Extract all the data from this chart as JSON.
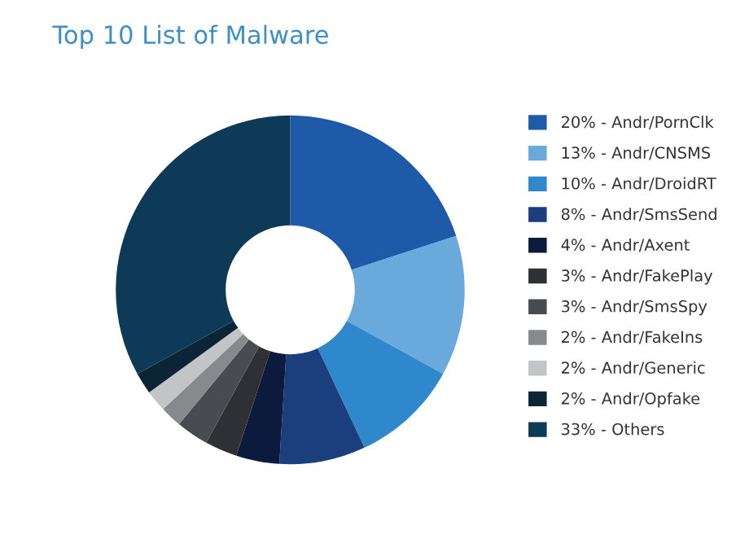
{
  "chart_data": {
    "type": "donut",
    "title": "Top 10 List of Malware",
    "categories": [
      "20% - Andr/PornClk",
      "13% - Andr/CNSMS",
      "10% - Andr/DroidRT",
      "8% - Andr/SmsSend",
      "4% - Andr/Axent",
      "3% - Andr/FakePlay",
      "3% - Andr/SmsSpy",
      "2% - Andr/FakeIns",
      "2% - Andr/Generic",
      "2% - Andr/Opfake",
      "33% - Others"
    ],
    "values": [
      20,
      13,
      10,
      8,
      4,
      3,
      3,
      2,
      2,
      2,
      33
    ],
    "colors": [
      "#1f5aa8",
      "#69a9dc",
      "#2f87cc",
      "#1a3f7c",
      "#0b1a3d",
      "#2e3034",
      "#484b50",
      "#87898c",
      "#c3c4c6",
      "#0c2536",
      "#0c3a57"
    ],
    "legend": "right"
  }
}
